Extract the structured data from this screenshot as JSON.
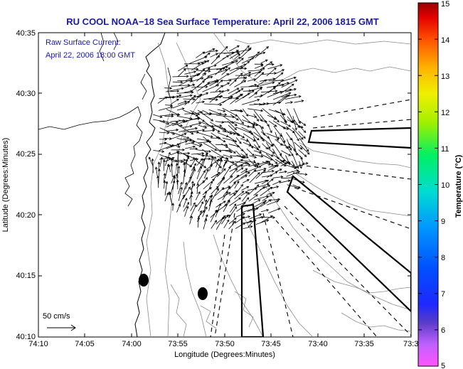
{
  "title": "RU COOL  NOAA−18  Sea Surface Temperature:  April 22, 2006 1815 GMT",
  "annotation": {
    "line1": "Raw Surface Current:",
    "line2": "April 22, 2006 18:00 GMT"
  },
  "scale_label": "50 cm/s",
  "map": {
    "xlabel": "Longitude (Degrees:Minutes)",
    "ylabel": "Latitude (Degrees:Minutes)",
    "x_ticks": [
      "74:10",
      "74:05",
      "74:00",
      "73:55",
      "73:50",
      "73:45",
      "73:40",
      "73:35",
      "73:3"
    ],
    "y_ticks": [
      "40:35",
      "40:30",
      "40:25",
      "40:20",
      "40:15",
      "40:10"
    ]
  },
  "colorbar": {
    "label": "Temperature (°C)",
    "ticks": [
      "15",
      "14",
      "13",
      "12",
      "11",
      "10",
      "9",
      "8",
      "7",
      "6",
      "5"
    ],
    "min": 5,
    "max": 15
  },
  "colors": {
    "title": "#1a1aa6",
    "vectors": "#000000",
    "contours": "#8c8c8c"
  }
}
